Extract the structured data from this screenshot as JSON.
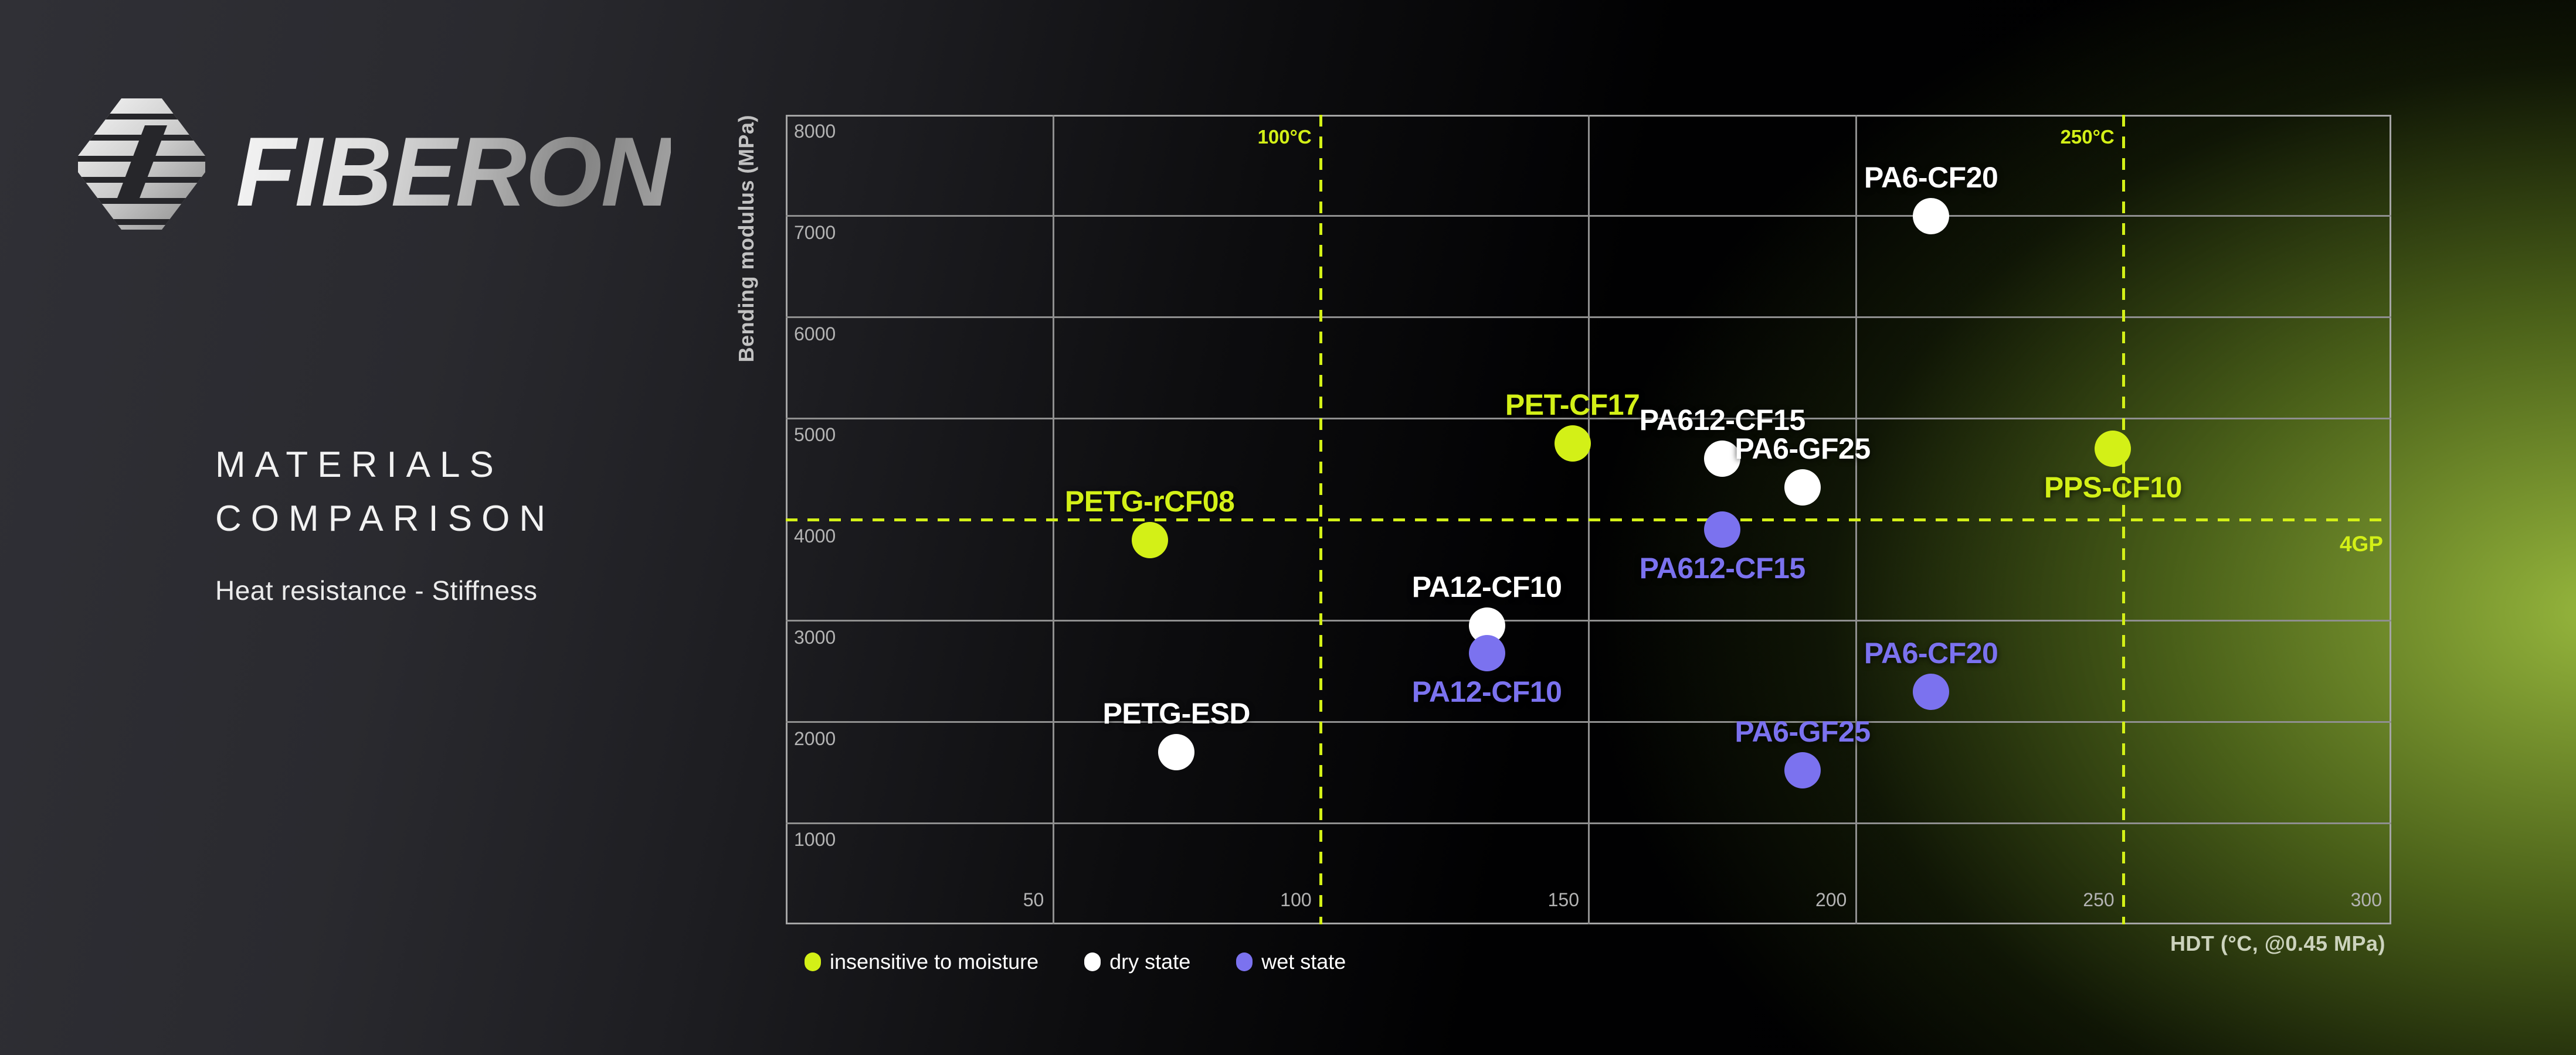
{
  "brand": {
    "name": "FIBERON",
    "logo_icon": "fiberon-hexagon-logo"
  },
  "panel": {
    "title_line1": "MATERIALS",
    "title_line2": "COMPARISON",
    "subtitle": "Heat resistance - Stiffness"
  },
  "colors": {
    "accent_green": "#D3F017",
    "wet_purple": "#7B72EF",
    "dry_white": "#FFFFFF",
    "grid_gray": "#8F8F8F",
    "frame_gray": "#A5A5A5",
    "tick_text": "#B3B3B3",
    "axis_text": "#C2C2C2",
    "title_text": "#F2F2F2",
    "glow_green": "#8FAE3F"
  },
  "chart_data": {
    "type": "scatter",
    "title": "Materials comparison - Heat resistance vs Stiffness",
    "xlabel": "HDT (°C, @0.45 MPa)",
    "ylabel": "Bending modulus (MPa)",
    "xlim": [
      0,
      300
    ],
    "ylim": [
      0,
      8000
    ],
    "x_ticks": [
      50,
      100,
      150,
      200,
      250,
      300
    ],
    "y_ticks": [
      1000,
      2000,
      3000,
      4000,
      5000,
      6000,
      7000,
      8000
    ],
    "grid": true,
    "legend_position": "bottom-left",
    "reference_lines": [
      {
        "axis": "x",
        "value": 100,
        "label": "100°C"
      },
      {
        "axis": "x",
        "value": 250,
        "label": "250°C"
      },
      {
        "axis": "y",
        "value": 4000,
        "label": "4GP"
      }
    ],
    "series": [
      {
        "name": "insensitive to moisture",
        "color_key": "accent_green",
        "points": [
          {
            "label": "PETG-rCF08",
            "x": 68,
            "y": 3800,
            "label_position": "above"
          },
          {
            "label": "PET-CF17",
            "x": 147,
            "y": 4750,
            "label_position": "above"
          },
          {
            "label": "PPS-CF10",
            "x": 248,
            "y": 4700,
            "label_position": "below"
          }
        ]
      },
      {
        "name": "dry state",
        "color_key": "dry_white",
        "points": [
          {
            "label": "PETG-ESD",
            "x": 73,
            "y": 1700,
            "label_position": "above"
          },
          {
            "label": "PA12-CF10",
            "x": 131,
            "y": 2950,
            "label_position": "above"
          },
          {
            "label": "PA612-CF15",
            "x": 175,
            "y": 4600,
            "label_position": "above"
          },
          {
            "label": "PA6-GF25",
            "x": 190,
            "y": 4320,
            "label_position": "above"
          },
          {
            "label": "PA6-CF20",
            "x": 214,
            "y": 7000,
            "label_position": "above"
          }
        ]
      },
      {
        "name": "wet state",
        "color_key": "wet_purple",
        "points": [
          {
            "label": "PA12-CF10",
            "x": 131,
            "y": 2680,
            "label_position": "below"
          },
          {
            "label": "PA612-CF15",
            "x": 175,
            "y": 3900,
            "label_position": "below"
          },
          {
            "label": "PA6-GF25",
            "x": 190,
            "y": 1520,
            "label_position": "above"
          },
          {
            "label": "PA6-CF20",
            "x": 214,
            "y": 2300,
            "label_position": "above"
          }
        ]
      }
    ],
    "legend": [
      {
        "label": "insensitive to moisture",
        "color_key": "accent_green"
      },
      {
        "label": "dry state",
        "color_key": "dry_white"
      },
      {
        "label": "wet state",
        "color_key": "wet_purple"
      }
    ]
  }
}
